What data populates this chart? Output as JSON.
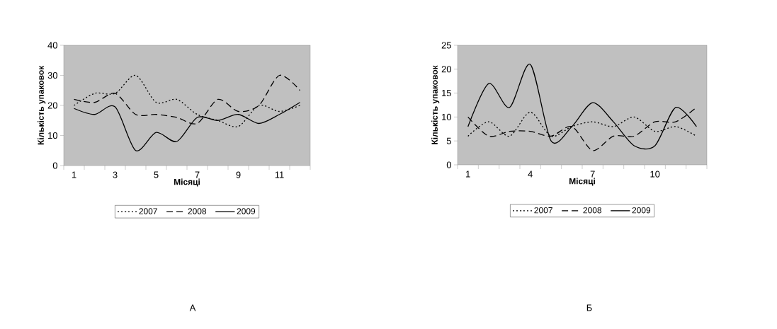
{
  "chart_data": [
    {
      "type": "line",
      "xlabel": "Місяці",
      "ylabel": "Кількість упаковок",
      "categories": [
        "1",
        null,
        "3",
        null,
        "5",
        null,
        "7",
        null,
        "9",
        null,
        "11",
        null
      ],
      "series": [
        {
          "name": "2007",
          "color": "#000000",
          "line_style": "dotted",
          "values": [
            20,
            24,
            24,
            30,
            21,
            22,
            17,
            15,
            13,
            20,
            18,
            20
          ]
        },
        {
          "name": "2008",
          "color": "#000000",
          "line_style": "dashed",
          "values": [
            22,
            21,
            24,
            17,
            17,
            16,
            14,
            22,
            18,
            20,
            30,
            25
          ]
        },
        {
          "name": "2009",
          "color": "#000000",
          "line_style": "solid",
          "values": [
            19,
            17,
            19.5,
            5,
            11,
            8,
            16,
            15,
            17,
            14,
            17,
            21
          ]
        }
      ],
      "ylim": [
        0,
        40
      ],
      "yticks": [
        0,
        10,
        20,
        30,
        40
      ],
      "legend": "bottom",
      "annotations": [
        "А"
      ]
    },
    {
      "type": "line",
      "xlabel": "Місяці",
      "ylabel": "Кількість упаковок",
      "categories": [
        "1",
        null,
        null,
        "4",
        null,
        null,
        "7",
        null,
        null,
        "10",
        null,
        null
      ],
      "series": [
        {
          "name": "2007",
          "color": "#000000",
          "line_style": "dotted",
          "values": [
            6,
            9,
            6,
            11,
            6,
            8,
            9,
            8,
            10,
            7,
            8,
            6
          ]
        },
        {
          "name": "2008",
          "color": "#000000",
          "line_style": "dashed",
          "values": [
            10,
            6,
            7,
            7,
            6,
            8,
            3,
            6,
            6,
            9,
            9,
            12
          ]
        },
        {
          "name": "2009",
          "color": "#000000",
          "line_style": "solid",
          "values": [
            8,
            17,
            12,
            21,
            5,
            8,
            13,
            9,
            4,
            4,
            12,
            8
          ]
        }
      ],
      "ylim": [
        0,
        25
      ],
      "yticks": [
        0,
        5,
        10,
        15,
        20,
        25
      ],
      "legend": "bottom",
      "annotations": [
        "Б"
      ]
    }
  ]
}
